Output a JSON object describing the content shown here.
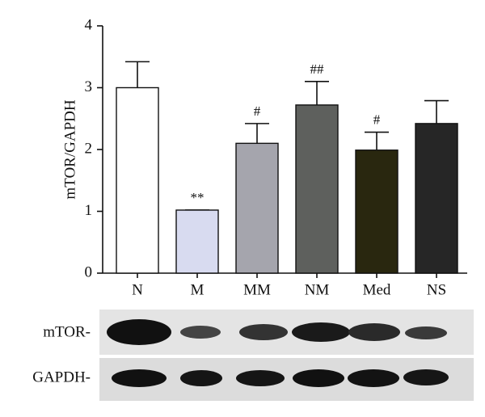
{
  "chart_data": {
    "type": "bar",
    "y_label": "mTOR/GAPDH",
    "categories": [
      "N",
      "M",
      "MM",
      "NM",
      "Med",
      "NS"
    ],
    "values": [
      3.0,
      1.02,
      2.1,
      2.72,
      1.99,
      2.42
    ],
    "errors": [
      0.42,
      0,
      0.32,
      0.38,
      0.29,
      0.37
    ],
    "annotations": [
      null,
      "**",
      "#",
      "##",
      "#",
      null
    ],
    "colors": [
      "#ffffff",
      "#d8dbf0",
      "#a5a5ad",
      "#5e605d",
      "#29270f",
      "#262626"
    ],
    "ylim": [
      0,
      4
    ],
    "yticks": [
      0,
      1,
      2,
      3,
      4
    ],
    "grid": false
  },
  "blot": {
    "rows": [
      "mTOR-",
      "GAPDH-"
    ]
  }
}
